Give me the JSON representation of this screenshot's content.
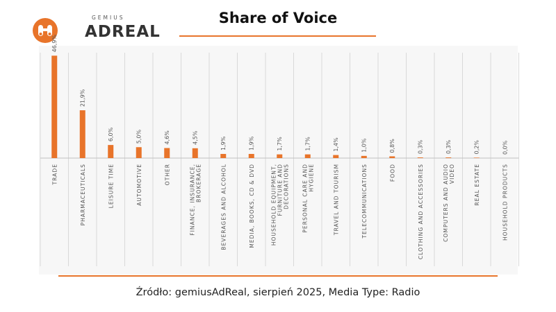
{
  "logo": {
    "top_text": "GEMIUS",
    "main_text": "ADREAL",
    "icon": "binoculars-icon"
  },
  "header": {
    "title": "Share of Voice"
  },
  "footer": {
    "source": "Źródło: gemiusAdReal, sierpień 2025, Media Type: Radio"
  },
  "colors": {
    "accent": "#E8742A",
    "bar": "#E8742A",
    "grid": "#d9d9d9",
    "label": "#555555"
  },
  "chart_data": {
    "type": "bar",
    "title": "Share of Voice",
    "xlabel": "",
    "ylabel": "",
    "grid": true,
    "legend": "none",
    "ylim": [
      0,
      47
    ],
    "categories": [
      "TRADE",
      "PHARMACEUTICALS",
      "LEISURE TIME",
      "AUTOMOTIVE",
      "OTHER",
      "FINANCE, INSURANCE, BROKERAGE",
      "BEVERAGES AND ALCOHOL",
      "MEDIA, BOOKS, CD & DVD",
      "HOUSEHOLD EQUIPMENT, FURNITURE AND DECORATIONS",
      "PERSONAL CARE AND HYGIENE",
      "TRAVEL AND TOURISM",
      "TELECOMMUNICATIONS",
      "FOOD",
      "CLOTHING AND ACCESSORIES",
      "COMPUTERS AND AUDIO VIDEO",
      "REAL ESTATE",
      "HOUSEHOLD PRODUCTS"
    ],
    "category_lines": [
      [
        "TRADE"
      ],
      [
        "PHARMACEUTICALS"
      ],
      [
        "LEISURE TIME"
      ],
      [
        "AUTOMOTIVE"
      ],
      [
        "OTHER"
      ],
      [
        "FINANCE, INSURANCE,",
        "BROKERAGE"
      ],
      [
        "BEVERAGES AND ALCOHOL"
      ],
      [
        "MEDIA, BOOKS, CD & DVD"
      ],
      [
        "HOUSEHOLD EQUIPMENT,",
        "FURNITURE AND",
        "DECORATIONS"
      ],
      [
        "PERSONAL CARE AND",
        "HYGIENE"
      ],
      [
        "TRAVEL AND TOURISM"
      ],
      [
        "TELECOMMUNICATIONS"
      ],
      [
        "FOOD"
      ],
      [
        "CLOTHING AND ACCESSORIES"
      ],
      [
        "COMPUTERS AND AUDIO",
        "VIDEO"
      ],
      [
        "REAL ESTATE"
      ],
      [
        "HOUSEHOLD PRODUCTS"
      ]
    ],
    "values": [
      46.9,
      21.9,
      6.0,
      5.0,
      4.6,
      4.5,
      1.9,
      1.9,
      1.7,
      1.7,
      1.4,
      1.0,
      0.8,
      0.3,
      0.3,
      0.2,
      0.0
    ],
    "data_labels": [
      "46,9%",
      "21,9%",
      "6,0%",
      "5,0%",
      "4,6%",
      "4,5%",
      "1,9%",
      "1,9%",
      "1,7%",
      "1,7%",
      "1,4%",
      "1,0%",
      "0,8%",
      "0,3%",
      "0,3%",
      "0,2%",
      "0,0%"
    ]
  }
}
